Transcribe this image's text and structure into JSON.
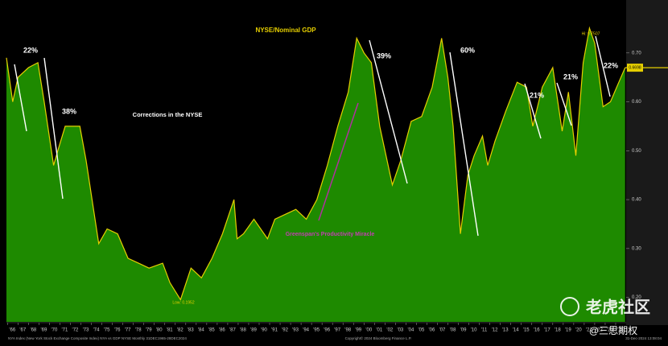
{
  "chart_data": {
    "type": "area",
    "title": "NYSE/Nominal GDP",
    "annotations": [
      "22%",
      "38%",
      "39%",
      "60%",
      "21%",
      "21%",
      "22%",
      "Corrections in the NYSE",
      "Greenspan's Productivity Miracle",
      "Low: 0.1952",
      "Hi: 0.7507"
    ],
    "footer": [
      "NYA Index (New York Stock Exchange Composite Index) NYA vs GDP NYSE Monthly 31DEC1965-28DEC2024",
      "Copyright© 2024 Bloomberg Finance L.P.",
      "31-Dec-2024 13:08:04"
    ],
    "watermark": [
      "老虎社区",
      "@三思期权"
    ],
    "series": [
      {
        "name": "NYSE/Nominal GDP",
        "color": "#1e8a00",
        "line_color": "#e6cf00",
        "x": [
          1965.9,
          1966.5,
          1967.0,
          1968.0,
          1968.9,
          1969.5,
          1970.4,
          1970.8,
          1971.5,
          1972.9,
          1973.5,
          1974.7,
          1975.5,
          1976.5,
          1977.5,
          1978.5,
          1979.5,
          1980.8,
          1981.5,
          1982.5,
          1983.5,
          1984.5,
          1985.5,
          1986.5,
          1987.6,
          1987.9,
          1988.5,
          1989.5,
          1990.8,
          1991.5,
          1992.5,
          1993.5,
          1994.5,
          1995.5,
          1996.5,
          1997.5,
          1998.5,
          1999.3,
          2000.0,
          2000.7,
          2001.5,
          2002.7,
          2003.5,
          2004.5,
          2005.5,
          2006.5,
          2007.4,
          2008.0,
          2008.5,
          2009.2,
          2009.9,
          2010.5,
          2011.3,
          2011.8,
          2012.5,
          2013.5,
          2014.6,
          2015.5,
          2016.1,
          2017.0,
          2018.0,
          2018.9,
          2019.5,
          2020.2,
          2020.9,
          2021.5,
          2022.0,
          2022.8,
          2023.5,
          2024.3,
          2024.9
        ],
        "values": [
          0.69,
          0.6,
          0.65,
          0.67,
          0.68,
          0.6,
          0.47,
          0.5,
          0.55,
          0.55,
          0.48,
          0.31,
          0.34,
          0.33,
          0.28,
          0.27,
          0.26,
          0.27,
          0.23,
          0.1952,
          0.26,
          0.24,
          0.28,
          0.33,
          0.4,
          0.32,
          0.33,
          0.36,
          0.32,
          0.36,
          0.37,
          0.38,
          0.36,
          0.4,
          0.47,
          0.55,
          0.62,
          0.73,
          0.7,
          0.68,
          0.55,
          0.43,
          0.48,
          0.56,
          0.57,
          0.63,
          0.73,
          0.65,
          0.55,
          0.33,
          0.45,
          0.49,
          0.53,
          0.47,
          0.52,
          0.58,
          0.64,
          0.63,
          0.55,
          0.63,
          0.67,
          0.54,
          0.62,
          0.49,
          0.68,
          0.7507,
          0.72,
          0.59,
          0.6,
          0.64,
          0.6698
        ]
      }
    ],
    "xlim": [
      1965.9,
      2025.0
    ],
    "ylim": [
      0.15,
      0.8
    ],
    "yticks": [
      {
        "value": 0.2,
        "label": "0.20"
      },
      {
        "value": 0.3,
        "label": "0.30"
      },
      {
        "value": 0.4,
        "label": "0.40"
      },
      {
        "value": 0.5,
        "label": "0.50"
      },
      {
        "value": 0.6,
        "label": "0.60"
      },
      {
        "value": 0.7,
        "label": "0.70"
      }
    ],
    "xticks": [
      {
        "value": 1966,
        "label": "'66"
      },
      {
        "value": 1967,
        "label": "'67"
      },
      {
        "value": 1968,
        "label": "'68"
      },
      {
        "value": 1969,
        "label": "'69"
      },
      {
        "value": 1970,
        "label": "'70"
      },
      {
        "value": 1971,
        "label": "'71"
      },
      {
        "value": 1972,
        "label": "'72"
      },
      {
        "value": 1973,
        "label": "'73"
      },
      {
        "value": 1974,
        "label": "'74"
      },
      {
        "value": 1975,
        "label": "'75"
      },
      {
        "value": 1976,
        "label": "'76"
      },
      {
        "value": 1977,
        "label": "'77"
      },
      {
        "value": 1978,
        "label": "'78"
      },
      {
        "value": 1979,
        "label": "'79"
      },
      {
        "value": 1980,
        "label": "'80"
      },
      {
        "value": 1981,
        "label": "'81"
      },
      {
        "value": 1982,
        "label": "'82"
      },
      {
        "value": 1983,
        "label": "'83"
      },
      {
        "value": 1984,
        "label": "'84"
      },
      {
        "value": 1985,
        "label": "'85"
      },
      {
        "value": 1986,
        "label": "'86"
      },
      {
        "value": 1987,
        "label": "'87"
      },
      {
        "value": 1988,
        "label": "'88"
      },
      {
        "value": 1989,
        "label": "'89"
      },
      {
        "value": 1990,
        "label": "'90"
      },
      {
        "value": 1991,
        "label": "'91"
      },
      {
        "value": 1992,
        "label": "'92"
      },
      {
        "value": 1993,
        "label": "'93"
      },
      {
        "value": 1994,
        "label": "'94"
      },
      {
        "value": 1995,
        "label": "'95"
      },
      {
        "value": 1996,
        "label": "'96"
      },
      {
        "value": 1997,
        "label": "'97"
      },
      {
        "value": 1998,
        "label": "'98"
      },
      {
        "value": 1999,
        "label": "'99"
      },
      {
        "value": 2000,
        "label": "'00"
      },
      {
        "value": 2001,
        "label": "'01"
      },
      {
        "value": 2002,
        "label": "'02"
      },
      {
        "value": 2003,
        "label": "'03"
      },
      {
        "value": 2004,
        "label": "'04"
      },
      {
        "value": 2005,
        "label": "'05"
      },
      {
        "value": 2006,
        "label": "'06"
      },
      {
        "value": 2007,
        "label": "'07"
      },
      {
        "value": 2008,
        "label": "'08"
      },
      {
        "value": 2009,
        "label": "'09"
      },
      {
        "value": 2010,
        "label": "'10"
      },
      {
        "value": 2011,
        "label": "'11"
      },
      {
        "value": 2012,
        "label": "'12"
      },
      {
        "value": 2013,
        "label": "'13"
      },
      {
        "value": 2014,
        "label": "'14"
      },
      {
        "value": 2015,
        "label": "'15"
      },
      {
        "value": 2016,
        "label": "'16"
      },
      {
        "value": 2017,
        "label": "'17"
      },
      {
        "value": 2018,
        "label": "'18"
      },
      {
        "value": 2019,
        "label": "'19"
      },
      {
        "value": 2020,
        "label": "'20"
      },
      {
        "value": 2021,
        "label": "'21"
      },
      {
        "value": 2022,
        "label": "'22"
      },
      {
        "value": 2023,
        "label": "'23"
      },
      {
        "value": 2024,
        "label": "'24"
      }
    ]
  }
}
